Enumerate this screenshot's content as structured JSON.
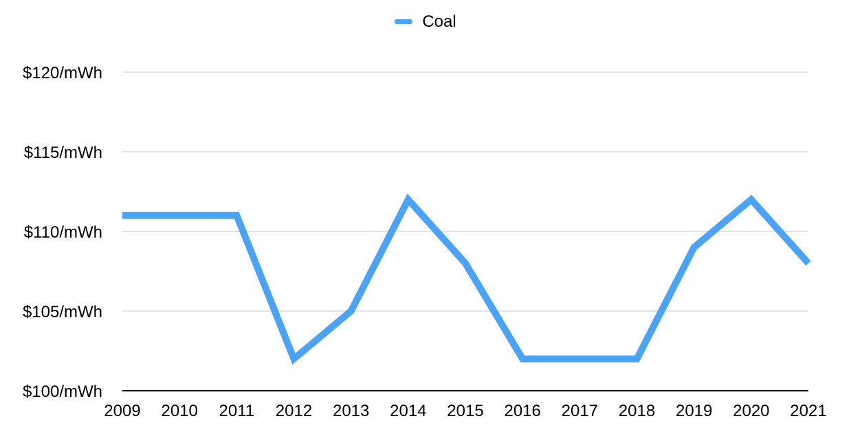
{
  "chart_data": {
    "type": "line",
    "title": "",
    "xlabel": "",
    "ylabel": "",
    "legend_position": "top",
    "grid": true,
    "x": [
      "2009",
      "2010",
      "2011",
      "2012",
      "2013",
      "2014",
      "2015",
      "2016",
      "2017",
      "2018",
      "2019",
      "2020",
      "2021"
    ],
    "ylim": [
      100,
      120
    ],
    "y_ticks": [
      {
        "value": 100,
        "label": "$100/mWh"
      },
      {
        "value": 105,
        "label": "$105/mWh"
      },
      {
        "value": 110,
        "label": "$110/mWh"
      },
      {
        "value": 115,
        "label": "$115/mWh"
      },
      {
        "value": 120,
        "label": "$120/mWh"
      }
    ],
    "series": [
      {
        "name": "Coal",
        "color": "#4ba3f5",
        "values": [
          111,
          111,
          111,
          102,
          105,
          112,
          108,
          102,
          102,
          102,
          109,
          112,
          108
        ]
      }
    ]
  }
}
